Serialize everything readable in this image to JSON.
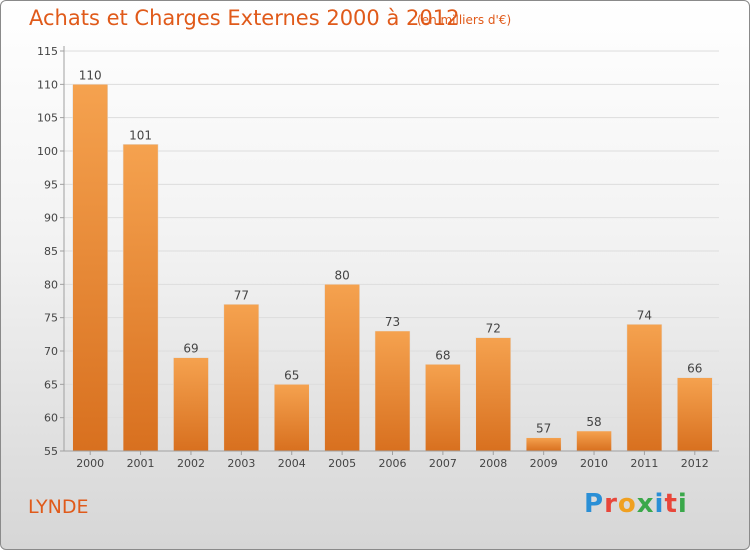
{
  "chart_data": {
    "type": "bar",
    "title": "Achats et Charges Externes 2000 à 2012",
    "subtitle": "(en milliers d'€)",
    "categories": [
      "2000",
      "2001",
      "2002",
      "2003",
      "2004",
      "2005",
      "2006",
      "2007",
      "2008",
      "2009",
      "2010",
      "2011",
      "2012"
    ],
    "values": [
      110,
      101,
      69,
      77,
      65,
      80,
      73,
      68,
      72,
      57,
      58,
      74,
      66
    ],
    "ylim": [
      55,
      115
    ],
    "yticks": [
      55,
      60,
      65,
      70,
      75,
      80,
      85,
      90,
      95,
      100,
      105,
      110,
      115
    ],
    "xlabel": "",
    "ylabel": "",
    "grid": true,
    "bar_color_top": "#f5a24f",
    "bar_color_bottom": "#d8701f"
  },
  "footer": {
    "commune": "LYNDE",
    "logo_text": "Proxiti",
    "logo_colors": [
      "#2a8fd6",
      "#e8463a",
      "#f0a020",
      "#3aa84a",
      "#2a8fd6",
      "#e8463a",
      "#3aa84a"
    ]
  }
}
